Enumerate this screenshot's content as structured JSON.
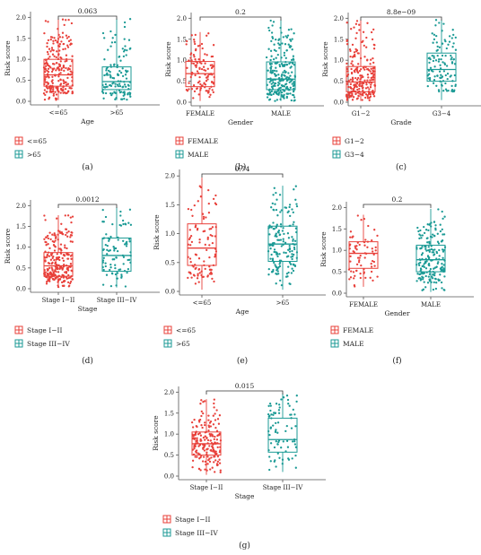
{
  "colors": {
    "red": "#E8403A",
    "teal": "#1B9A95",
    "axis": "#555555"
  },
  "chart_data": [
    {
      "type": "box",
      "label": "(a)",
      "xlabel": "Age",
      "ylabel": "Risk score",
      "ylim": [
        0,
        2.05
      ],
      "yticks": [
        "0.0",
        "0.5",
        "1.0",
        "1.5",
        "2.0"
      ],
      "pvalue": "0.063",
      "legend": {
        "position": "bottom-left",
        "entries": [
          "<=65",
          ">65"
        ]
      },
      "series": [
        {
          "name": "<=65",
          "category": "<=65",
          "color": "red",
          "n": 230,
          "min": 0.03,
          "q1": 0.36,
          "median": 0.63,
          "q3": 1.0,
          "max": 1.97
        },
        {
          "name": ">65",
          "category": ">65",
          "color": "teal",
          "n": 120,
          "min": 0.03,
          "q1": 0.28,
          "median": 0.47,
          "q3": 0.82,
          "max": 1.97
        }
      ]
    },
    {
      "type": "box",
      "label": "(b)",
      "xlabel": "Gender",
      "ylabel": "Risk score",
      "ylim": [
        0,
        2.05
      ],
      "yticks": [
        "0.0",
        "0.5",
        "1.0",
        "1.5",
        "2.0"
      ],
      "pvalue": "0.2",
      "legend": {
        "position": "bottom-left",
        "entries": [
          "FEMALE",
          "MALE"
        ]
      },
      "series": [
        {
          "name": "FEMALE",
          "category": "FEMALE",
          "color": "red",
          "n": 110,
          "min": 0.03,
          "q1": 0.37,
          "median": 0.68,
          "q3": 0.97,
          "max": 1.67
        },
        {
          "name": "MALE",
          "category": "MALE",
          "color": "teal",
          "n": 240,
          "min": 0.03,
          "q1": 0.3,
          "median": 0.55,
          "q3": 0.96,
          "max": 1.97
        }
      ]
    },
    {
      "type": "box",
      "label": "(c)",
      "xlabel": "Grade",
      "ylabel": "Risk score",
      "ylim": [
        0,
        2.05
      ],
      "yticks": [
        "0.0",
        "0.5",
        "1.0",
        "1.5",
        "2.0"
      ],
      "pvalue": "8.8e−09",
      "legend": {
        "position": "bottom-left",
        "entries": [
          "G1−2",
          "G3−4"
        ]
      },
      "series": [
        {
          "name": "G1−2",
          "category": "G1−2",
          "color": "red",
          "n": 230,
          "min": 0.03,
          "q1": 0.25,
          "median": 0.48,
          "q3": 0.85,
          "max": 1.97
        },
        {
          "name": "G3−4",
          "category": "G3−4",
          "color": "teal",
          "n": 110,
          "min": 0.05,
          "q1": 0.5,
          "median": 0.78,
          "q3": 1.17,
          "max": 1.97
        }
      ]
    },
    {
      "type": "box",
      "label": "(d)",
      "xlabel": "Stage",
      "ylabel": "Risk score",
      "ylim": [
        0,
        2.05
      ],
      "yticks": [
        "0.0",
        "0.5",
        "1.0",
        "1.5",
        "2.0"
      ],
      "pvalue": "0.0012",
      "legend": {
        "position": "bottom-left",
        "entries": [
          "Stage I−II",
          "Stage III−IV"
        ]
      },
      "series": [
        {
          "name": "Stage I−II",
          "category": "Stage I−II",
          "color": "red",
          "n": 240,
          "min": 0.03,
          "q1": 0.3,
          "median": 0.55,
          "q3": 0.87,
          "max": 1.77
        },
        {
          "name": "Stage III−IV",
          "category": "Stage III−IV",
          "color": "teal",
          "n": 90,
          "min": 0.03,
          "q1": 0.42,
          "median": 0.8,
          "q3": 1.22,
          "max": 1.97
        }
      ]
    },
    {
      "type": "box",
      "label": "(e)",
      "xlabel": "Age",
      "ylabel": "Risk score",
      "ylim": [
        0,
        2.05
      ],
      "yticks": [
        "0.0",
        "0.5",
        "1.0",
        "1.5",
        "2.0"
      ],
      "pvalue": "0.74",
      "legend": {
        "position": "bottom-left",
        "entries": [
          "<=65",
          ">65"
        ]
      },
      "series": [
        {
          "name": "<=65",
          "category": "<=65",
          "color": "red",
          "n": 100,
          "min": 0.03,
          "q1": 0.45,
          "median": 0.75,
          "q3": 1.17,
          "max": 1.97
        },
        {
          "name": ">65",
          "category": ">65",
          "color": "teal",
          "n": 160,
          "min": 0.03,
          "q1": 0.52,
          "median": 0.82,
          "q3": 1.13,
          "max": 1.83
        }
      ]
    },
    {
      "type": "box",
      "label": "(f)",
      "xlabel": "Gender",
      "ylabel": "Risk score",
      "ylim": [
        0,
        2.05
      ],
      "yticks": [
        "0.0",
        "0.5",
        "1.0",
        "1.5",
        "2.0"
      ],
      "pvalue": "0.2",
      "legend": {
        "position": "bottom-left",
        "entries": [
          "FEMALE",
          "MALE"
        ]
      },
      "series": [
        {
          "name": "FEMALE",
          "category": "FEMALE",
          "color": "red",
          "n": 70,
          "min": 0.15,
          "q1": 0.58,
          "median": 0.93,
          "q3": 1.2,
          "max": 1.83
        },
        {
          "name": "MALE",
          "category": "MALE",
          "color": "teal",
          "n": 190,
          "min": 0.03,
          "q1": 0.5,
          "median": 0.78,
          "q3": 1.12,
          "max": 1.97
        }
      ]
    },
    {
      "type": "box",
      "label": "(g)",
      "xlabel": "Stage",
      "ylabel": "Risk score",
      "ylim": [
        0,
        2.05
      ],
      "yticks": [
        "0.0",
        "0.5",
        "1.0",
        "1.5",
        "2.0"
      ],
      "pvalue": "0.015",
      "legend": {
        "position": "bottom-left",
        "entries": [
          "Stage I−II",
          "Stage III−IV"
        ]
      },
      "series": [
        {
          "name": "Stage I−II",
          "category": "Stage I−II",
          "color": "red",
          "n": 190,
          "min": 0.03,
          "q1": 0.5,
          "median": 0.77,
          "q3": 1.05,
          "max": 1.83
        },
        {
          "name": "Stage III−IV",
          "category": "Stage III−IV",
          "color": "teal",
          "n": 80,
          "min": 0.1,
          "q1": 0.57,
          "median": 0.87,
          "q3": 1.38,
          "max": 1.97
        }
      ]
    }
  ]
}
